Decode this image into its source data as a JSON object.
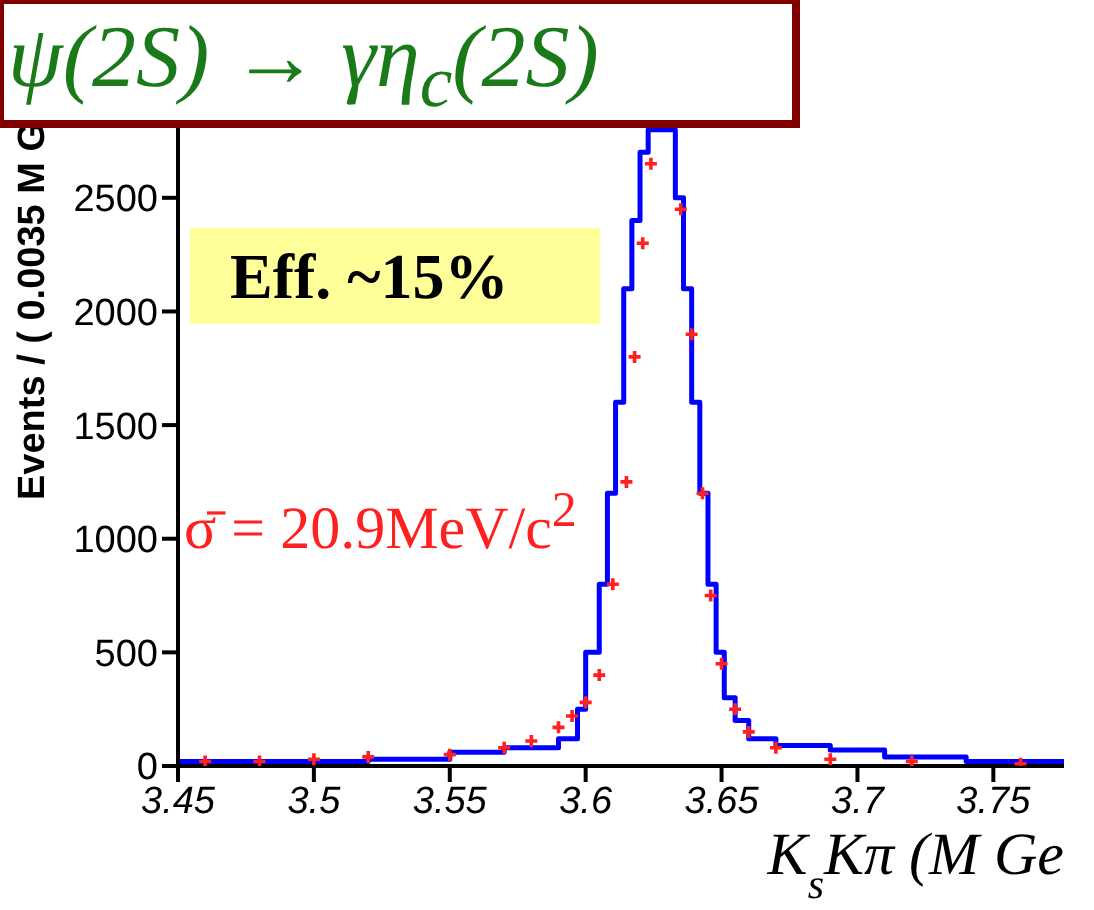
{
  "chart_data": {
    "type": "step",
    "title": "ψ(2S) → γη$_{c}$(2S)",
    "xlabel": "K$_{s}$Kπ (M Ge",
    "ylabel": "Events / ( 0.0035 M G",
    "annotations": [
      "Eff. ~15%",
      "σ̄ = 20.9MeV/c$^{2}$"
    ],
    "series": [
      {
        "color": "#0000ff",
        "x": [
          3.45,
          3.52,
          3.55,
          3.57,
          3.59,
          3.597,
          3.6,
          3.605,
          3.608,
          3.611,
          3.614,
          3.617,
          3.62,
          3.623,
          3.626,
          3.633,
          3.636,
          3.639,
          3.642,
          3.645,
          3.648,
          3.651,
          3.655,
          3.66,
          3.67,
          3.69,
          3.71,
          3.74,
          3.776
        ],
        "values": [
          20,
          30,
          60,
          80,
          120,
          250,
          500,
          800,
          1200,
          1600,
          2100,
          2400,
          2700,
          2800,
          2800,
          2500,
          2100,
          1600,
          1200,
          800,
          500,
          300,
          200,
          120,
          90,
          70,
          40,
          20,
          20
        ]
      },
      {
        "type": "scatter",
        "color": "#ff2020",
        "marker": "cross",
        "x": [
          3.46,
          3.48,
          3.5,
          3.52,
          3.55,
          3.57,
          3.58,
          3.59,
          3.595,
          3.6,
          3.605,
          3.61,
          3.615,
          3.618,
          3.621,
          3.624,
          3.635,
          3.639,
          3.643,
          3.646,
          3.65,
          3.655,
          3.66,
          3.67,
          3.69,
          3.72,
          3.76
        ],
        "values": [
          20,
          20,
          30,
          40,
          50,
          80,
          110,
          170,
          220,
          280,
          400,
          800,
          1250,
          1800,
          2300,
          2650,
          2450,
          1900,
          1200,
          750,
          450,
          250,
          150,
          80,
          30,
          20,
          10
        ]
      }
    ],
    "xlim": [
      3.45,
      3.776
    ],
    "xticks": [
      3.45,
      3.5,
      3.55,
      3.6,
      3.65,
      3.7,
      3.75
    ],
    "ylim": [
      0,
      3300
    ],
    "yticks": [
      0,
      500,
      1000,
      1500,
      2000,
      2500
    ],
    "grid": false,
    "legend": false
  }
}
